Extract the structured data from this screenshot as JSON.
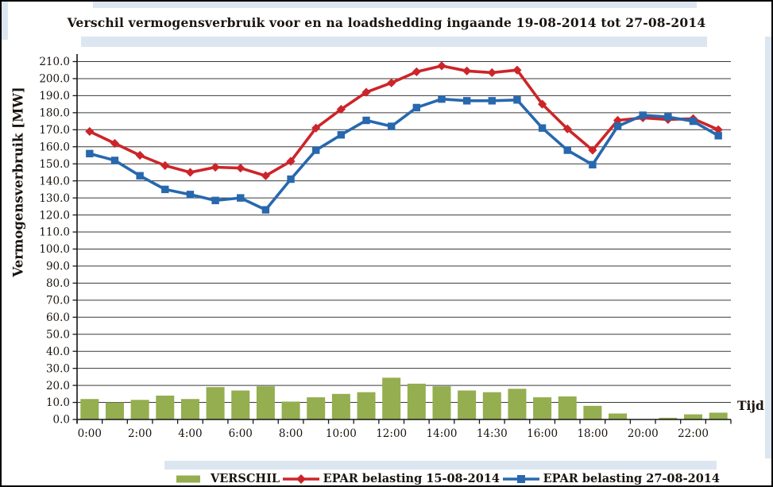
{
  "title": "Verschil vermogensverbruik voor en na loadshedding ingaande 19-08-2014 tot 27-08-2014",
  "y_axis": {
    "title": "Vermogensverbruik [MW]",
    "tick_labels": [
      "0.0",
      "10.0",
      "20.0",
      "30.0",
      "40.0",
      "50.0",
      "60.0",
      "70.0",
      "80.0",
      "90.0",
      "100.0",
      "110.0",
      "120.0",
      "130.0",
      "140.0",
      "150.0",
      "160.0",
      "170.0",
      "180.0",
      "190.0",
      "200.0",
      "210.0"
    ]
  },
  "x_axis": {
    "title": "Tijd",
    "tick_labels": [
      "0:00",
      "2:00",
      "4:00",
      "6:00",
      "8:00",
      "10:00",
      "12:00",
      "14:00",
      "14:30",
      "16:00",
      "18:00",
      "20:00",
      "22:00"
    ],
    "label_slots": [
      0,
      2,
      4,
      6,
      8,
      10,
      12,
      14,
      16,
      18,
      20,
      22,
      24
    ]
  },
  "colors": {
    "bar": "#94ae50",
    "line_red": "#cc2529",
    "line_blue": "#2768ae",
    "grid": "#3a3a3a",
    "axis": "#161616",
    "highlight": "#dce6f1",
    "text": "#1b140e"
  },
  "chart_data": {
    "type": "combo-bar-line",
    "n_points": 26,
    "ylim": [
      0,
      210
    ],
    "y_tick_step": 10,
    "grid": "horizontal",
    "legend_position": "bottom",
    "x_tick_labels": [
      "0:00",
      "2:00",
      "4:00",
      "6:00",
      "8:00",
      "10:00",
      "12:00",
      "14:00",
      "14:30",
      "16:00",
      "18:00",
      "20:00",
      "22:00"
    ],
    "series": [
      {
        "name": "VERSCHIL",
        "type": "bar",
        "color": "#94ae50",
        "values": [
          12,
          10,
          11.5,
          14,
          12,
          19,
          17,
          19.5,
          10.5,
          13,
          15,
          16,
          24.5,
          21,
          19.5,
          17,
          16,
          18,
          13,
          13.5,
          8,
          3.5,
          0,
          1,
          3,
          4
        ]
      },
      {
        "name": "EPAR belasting 15-08-2014",
        "type": "line",
        "marker": "diamond",
        "color": "#cc2529",
        "values": [
          169,
          162,
          155,
          149,
          145,
          148,
          147.5,
          143,
          151.5,
          171,
          182,
          192,
          197.5,
          204,
          207.5,
          204.5,
          203.5,
          205,
          185,
          170.5,
          158,
          175.5,
          177,
          176,
          176.5,
          170
        ]
      },
      {
        "name": "EPAR belasting 27-08-2014",
        "type": "line",
        "marker": "square",
        "color": "#2768ae",
        "values": [
          156,
          152,
          143,
          135,
          132,
          128.5,
          130,
          123,
          141,
          158,
          167,
          175.5,
          172,
          183,
          188,
          187,
          187,
          187.5,
          171,
          158,
          149.5,
          172,
          178.5,
          177.5,
          175,
          166.5
        ]
      }
    ]
  }
}
